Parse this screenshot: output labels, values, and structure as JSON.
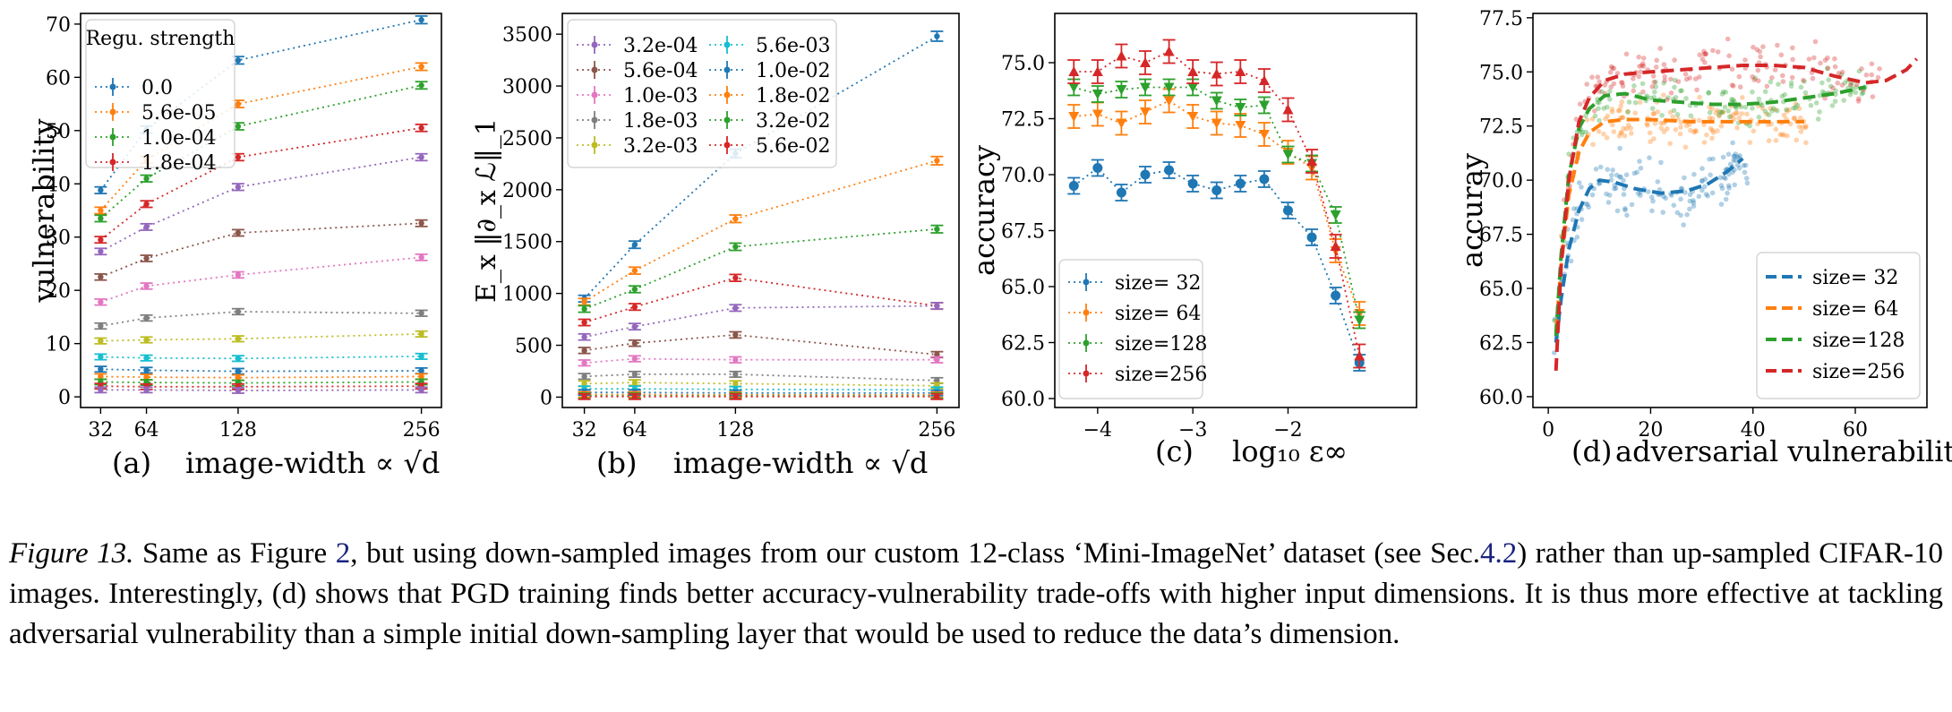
{
  "colors": [
    "#1f77b4",
    "#ff7f0e",
    "#2ca02c",
    "#d62728",
    "#9467bd",
    "#8c564b",
    "#e377c2",
    "#7f7f7f",
    "#bcbd22",
    "#17becf"
  ],
  "panels": [
    {
      "id": "a",
      "letter": "(a)",
      "xlabel": "image-width ∝ √d",
      "ylabel": "vulnerability",
      "xlim": [
        18,
        270
      ],
      "ylim": [
        -2,
        72
      ],
      "xticks": [
        32,
        64,
        128,
        256
      ],
      "yticks": [
        0,
        10,
        20,
        30,
        40,
        50,
        60,
        70
      ],
      "legend": {
        "title": "Regu. strength",
        "position": "upper-left",
        "columns": 1,
        "entries": [
          "0.0",
          "5.6e-05",
          "1.0e-04",
          "1.8e-04"
        ]
      },
      "chart_data": {
        "type": "line",
        "title": "",
        "xlabel": "image-width ∝ √d",
        "ylabel": "vulnerability",
        "x": [
          32,
          64,
          128,
          256
        ],
        "series": [
          {
            "name": "0.0",
            "values": [
              38.8,
              50.2,
              63.2,
              70.8
            ]
          },
          {
            "name": "5.6e-05",
            "values": [
              35.0,
              44.5,
              55.0,
              62.0
            ]
          },
          {
            "name": "1.0e-04",
            "values": [
              33.5,
              41.0,
              50.8,
              58.5
            ]
          },
          {
            "name": "1.8e-04",
            "values": [
              29.5,
              36.2,
              45.0,
              50.5
            ]
          },
          {
            "name": "",
            "values": [
              27.3,
              31.9,
              39.4,
              45.0
            ]
          },
          {
            "name": "",
            "values": [
              22.5,
              26.0,
              30.8,
              32.6
            ]
          },
          {
            "name": "",
            "values": [
              17.8,
              20.8,
              22.9,
              26.2
            ]
          },
          {
            "name": "",
            "values": [
              13.3,
              14.8,
              16.0,
              15.7
            ]
          },
          {
            "name": "",
            "values": [
              10.5,
              10.7,
              10.9,
              11.8
            ]
          },
          {
            "name": "",
            "values": [
              7.5,
              7.3,
              7.2,
              7.6
            ]
          },
          {
            "name": "",
            "values": [
              5.2,
              5.0,
              4.8,
              4.9
            ]
          },
          {
            "name": "",
            "values": [
              3.8,
              3.7,
              3.6,
              3.8
            ]
          },
          {
            "name": "",
            "values": [
              2.8,
              2.7,
              2.6,
              2.8
            ]
          },
          {
            "name": "",
            "values": [
              2.0,
              1.9,
              1.9,
              2.0
            ]
          },
          {
            "name": "",
            "values": [
              1.3,
              1.3,
              1.2,
              1.3
            ]
          }
        ]
      }
    },
    {
      "id": "b",
      "letter": "(b)",
      "xlabel": "image-width ∝ √d",
      "ylabel": "E_x ‖∂_x ℒ‖_1",
      "xlim": [
        18,
        270
      ],
      "ylim": [
        -100,
        3700
      ],
      "xticks": [
        32,
        64,
        128,
        256
      ],
      "yticks": [
        0,
        500,
        1000,
        1500,
        2000,
        2500,
        3000,
        3500
      ],
      "legend": {
        "title": "",
        "position": "upper-left",
        "columns": 2,
        "entries": [
          "3.2e-04",
          "5.6e-04",
          "1.0e-03",
          "1.8e-03",
          "3.2e-03",
          "5.6e-03",
          "1.0e-02",
          "1.8e-02",
          "3.2e-02",
          "5.6e-02"
        ]
      },
      "chart_data": {
        "type": "line",
        "title": "",
        "xlabel": "image-width ∝ √d",
        "ylabel": "E_x ‖∂_x ℒ‖_1",
        "x": [
          32,
          64,
          128,
          256
        ],
        "series": [
          {
            "name": "",
            "values": [
              950,
              1470,
              2350,
              3480
            ]
          },
          {
            "name": "",
            "values": [
              920,
              1220,
              1720,
              2280
            ]
          },
          {
            "name": "",
            "values": [
              850,
              1040,
              1450,
              1620
            ]
          },
          {
            "name": "",
            "values": [
              720,
              870,
              1150,
              880
            ]
          },
          {
            "name": "3.2e-04",
            "values": [
              580,
              680,
              860,
              880
            ]
          },
          {
            "name": "5.6e-04",
            "values": [
              450,
              520,
              600,
              410
            ]
          },
          {
            "name": "1.0e-03",
            "values": [
              330,
              370,
              360,
              360
            ]
          },
          {
            "name": "1.8e-03",
            "values": [
              200,
              220,
              220,
              160
            ]
          },
          {
            "name": "3.2e-03",
            "values": [
              130,
              140,
              130,
              110
            ]
          },
          {
            "name": "5.6e-03",
            "values": [
              80,
              80,
              75,
              70
            ]
          },
          {
            "name": "1.0e-02",
            "values": [
              45,
              45,
              40,
              40
            ]
          },
          {
            "name": "1.8e-02",
            "values": [
              25,
              25,
              22,
              22
            ]
          },
          {
            "name": "3.2e-02",
            "values": [
              12,
              12,
              12,
              12
            ]
          },
          {
            "name": "5.6e-02",
            "values": [
              5,
              5,
              5,
              5
            ]
          }
        ]
      }
    },
    {
      "id": "c",
      "letter": "(c)",
      "xlabel": "log₁₀ ε∞",
      "ylabel": "accuracy",
      "xlim": [
        -4.45,
        -0.65
      ],
      "ylim": [
        59.6,
        77.2
      ],
      "xticks": [
        -4,
        -3,
        -2
      ],
      "xticklabels": [
        "−4",
        "−3",
        "−2"
      ],
      "yticks": [
        60.0,
        62.5,
        65.0,
        67.5,
        70.0,
        72.5,
        75.0
      ],
      "yticklabels": [
        "60.0",
        "62.5",
        "65.0",
        "67.5",
        "70.0",
        "72.5",
        "75.0"
      ],
      "legend": {
        "title": "",
        "position": "lower-left",
        "columns": 1,
        "entries": [
          "size= 32",
          "size= 64",
          "size=128",
          "size=256"
        ]
      },
      "chart_data": {
        "type": "line",
        "title": "",
        "xlabel": "log₁₀ ε∞",
        "ylabel": "accuracy",
        "x": [
          -4.25,
          -4.0,
          -3.75,
          -3.5,
          -3.25,
          -3.0,
          -2.75,
          -2.5,
          -2.25,
          -2.0,
          -1.75,
          -1.5,
          -1.25
        ],
        "series": [
          {
            "name": "size= 32",
            "values": [
              69.5,
              70.3,
              69.2,
              70.0,
              70.2,
              69.6,
              69.3,
              69.6,
              69.8,
              68.4,
              67.2,
              64.6,
              61.6
            ]
          },
          {
            "name": "size= 64",
            "values": [
              72.6,
              72.7,
              72.3,
              72.8,
              73.3,
              72.6,
              72.3,
              72.2,
              71.8,
              71.0,
              70.3,
              66.6,
              63.8
            ]
          },
          {
            "name": "size=128",
            "values": [
              73.9,
              73.6,
              73.8,
              73.9,
              73.9,
              73.9,
              73.3,
              73.0,
              73.1,
              70.9,
              70.5,
              68.2,
              63.5
            ]
          },
          {
            "name": "size=256",
            "values": [
              74.6,
              74.6,
              75.3,
              75.0,
              75.5,
              74.6,
              74.5,
              74.6,
              74.2,
              72.9,
              70.6,
              66.8,
              61.9
            ]
          }
        ]
      }
    },
    {
      "id": "d",
      "letter": "(d)",
      "xlabel": "adversarial vulnerability",
      "ylabel": "accuray",
      "xlim": [
        -3,
        74
      ],
      "ylim": [
        59.5,
        77.7
      ],
      "xticks": [
        0,
        20,
        40,
        60
      ],
      "yticks": [
        60.0,
        62.5,
        65.0,
        67.5,
        70.0,
        72.5,
        75.0,
        77.5
      ],
      "yticklabels": [
        "60.0",
        "62.5",
        "65.0",
        "67.5",
        "70.0",
        "72.5",
        "75.0",
        "77.5"
      ],
      "legend": {
        "title": "",
        "position": "lower-right",
        "columns": 1,
        "entries": [
          "size= 32",
          "size= 64",
          "size=128",
          "size=256"
        ]
      },
      "chart_data": {
        "type": "scatter",
        "title": "",
        "xlabel": "adversarial vulnerability",
        "ylabel": "accuray",
        "series": [
          {
            "name": "size= 32",
            "fit_x": [
              1.5,
              2.5,
              4,
              6,
              8,
              10,
              13,
              17,
              22,
              27,
              31,
              35,
              38
            ],
            "fit_y": [
              62.5,
              64.5,
              66.8,
              68.6,
              69.6,
              70.0,
              69.9,
              69.6,
              69.4,
              69.5,
              69.8,
              70.4,
              71.0
            ],
            "cloud": {
              "x_range": [
                1,
                39
              ],
              "center": 69.8,
              "spread": 1.3
            }
          },
          {
            "name": "size= 64",
            "fit_x": [
              1.5,
              2.5,
              4,
              6,
              8,
              11,
              15,
              20,
              28,
              36,
              44,
              50
            ],
            "fit_y": [
              63.0,
              66.0,
              69.3,
              71.3,
              72.2,
              72.7,
              72.8,
              72.8,
              72.7,
              72.7,
              72.7,
              72.7
            ],
            "cloud": {
              "x_range": [
                1,
                51
              ],
              "center": 72.7,
              "spread": 1.0
            }
          },
          {
            "name": "size=128",
            "fit_x": [
              1.5,
              2.5,
              4,
              6,
              8,
              11,
              15,
              20,
              26,
              32,
              38,
              44,
              50,
              56,
              62
            ],
            "fit_y": [
              62.8,
              66.5,
              70.2,
              72.4,
              73.3,
              73.9,
              74.0,
              73.7,
              73.6,
              73.5,
              73.5,
              73.6,
              73.8,
              74.0,
              74.3
            ],
            "cloud": {
              "x_range": [
                1,
                63
              ],
              "center": 73.9,
              "spread": 1.0
            }
          },
          {
            "name": "size=256",
            "fit_x": [
              1.5,
              2.5,
              4,
              6,
              8,
              11,
              15,
              20,
              26,
              32,
              38,
              44,
              50,
              56,
              62,
              66,
              70,
              72
            ],
            "fit_y": [
              61.2,
              66.0,
              70.0,
              72.7,
              73.8,
              74.6,
              74.9,
              75.0,
              75.1,
              75.2,
              75.3,
              75.3,
              75.2,
              74.8,
              74.5,
              74.6,
              75.1,
              75.6
            ],
            "cloud": {
              "x_range": [
                1,
                65
              ],
              "center": 75.0,
              "spread": 1.1
            }
          }
        ]
      }
    }
  ],
  "caption": {
    "lead": "Figure 13.",
    "t1": " Same as Figure ",
    "ref1": "2",
    "t2": ", but using down-sampled images from our custom 12-class ‘Mini-ImageNet’ dataset (see Sec.",
    "ref2": "4.2",
    "t3": ") rather than up-sampled CIFAR-10 images. Interestingly, (d) shows that PGD training finds better accuracy-vulnerability trade-offs with higher input dimensions. It is thus more effective at tackling adversarial vulnerability than a simple initial down-sampling layer that would be used to reduce the data’s dimension."
  }
}
